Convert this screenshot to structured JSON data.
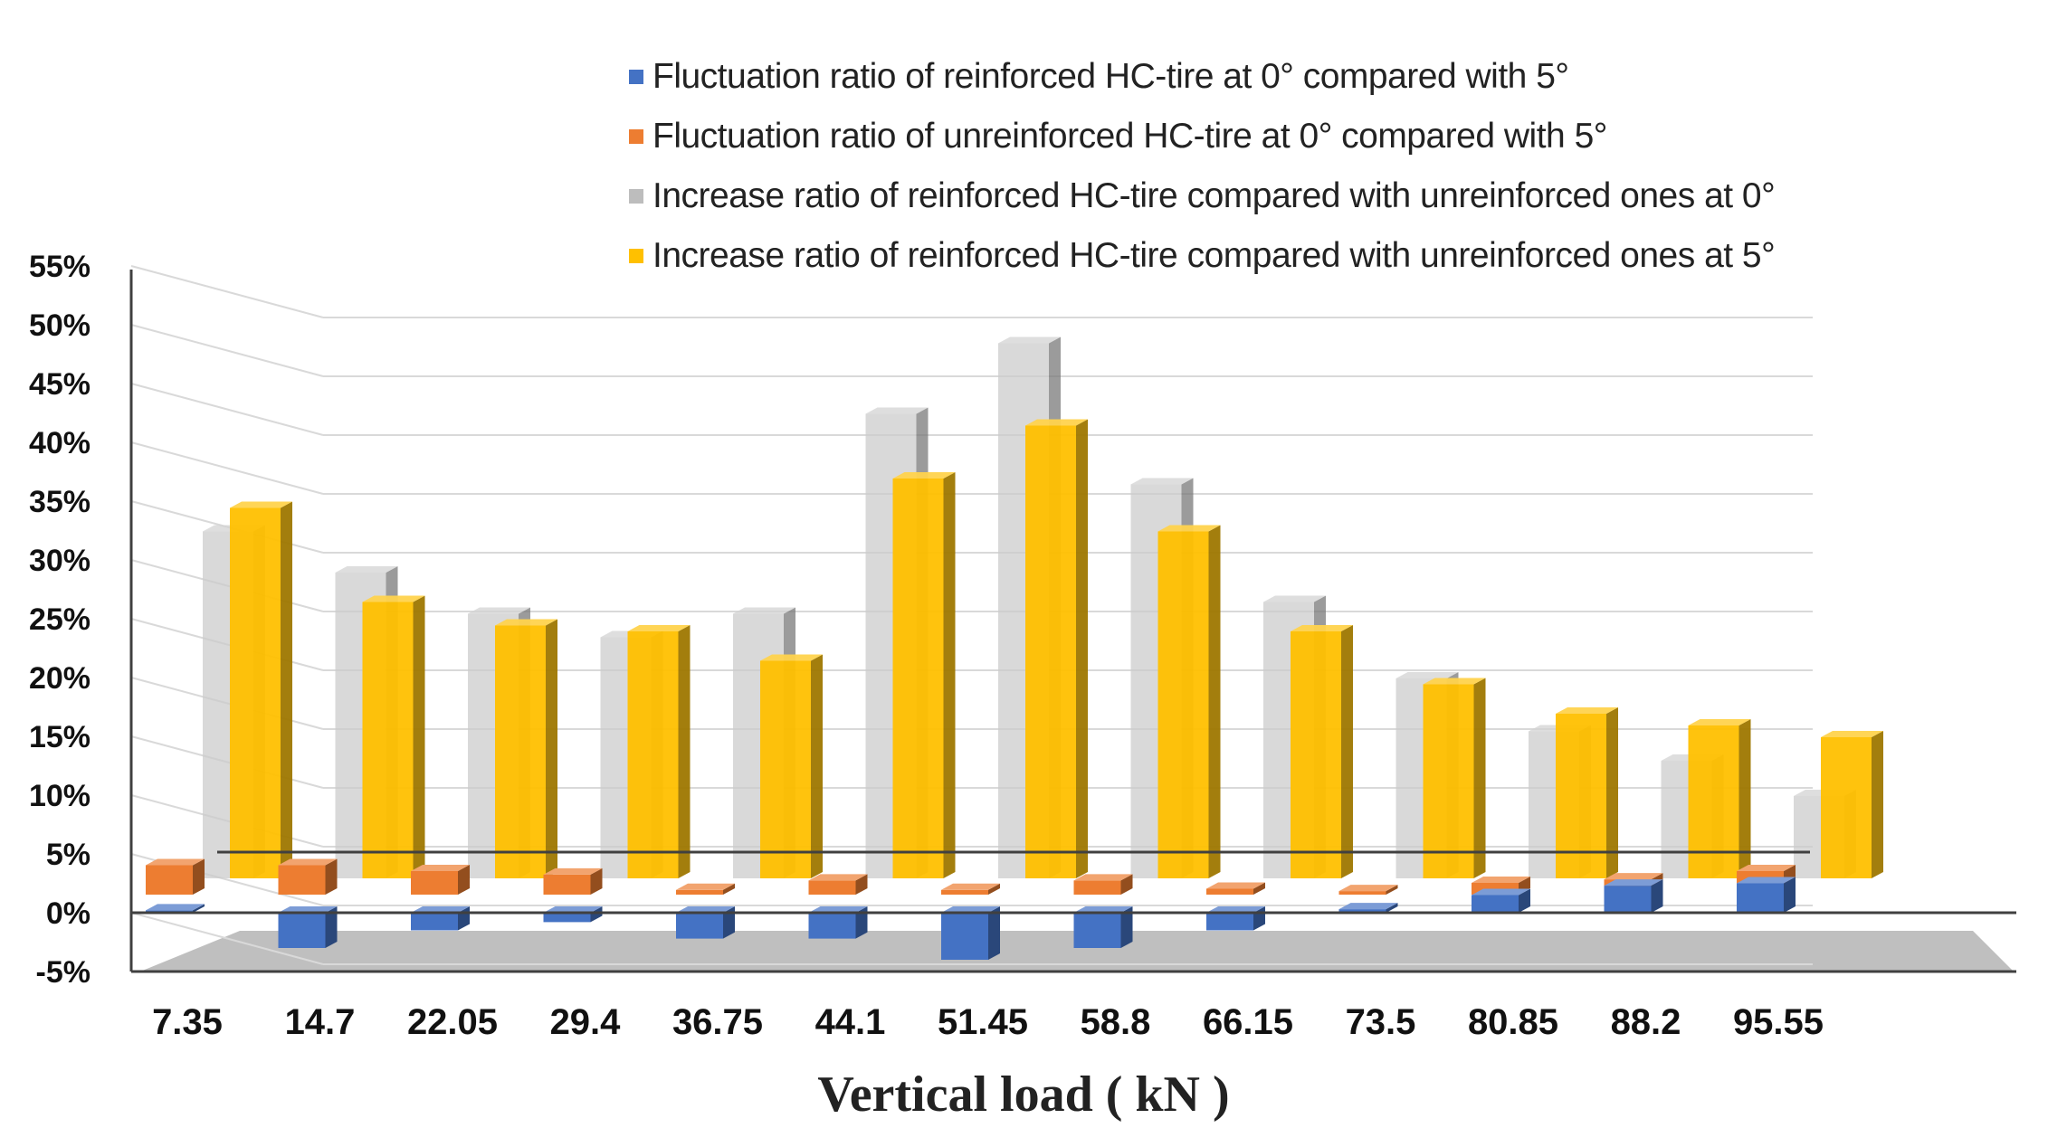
{
  "chart_data": {
    "type": "bar",
    "title": "",
    "xlabel": "Vertical load ( kN )",
    "ylabel": "",
    "ylim": [
      -5,
      55
    ],
    "ytick_step": 5,
    "ytick_suffix": "%",
    "categories": [
      "7.35",
      "14.7",
      "22.05",
      "29.4",
      "36.75",
      "44.1",
      "51.45",
      "58.8",
      "66.15",
      "73.5",
      "80.85",
      "88.2",
      "95.55"
    ],
    "legend_position": "top-right",
    "series": [
      {
        "name": "Fluctuation ratio of reinforced HC-tire at 0° compared with 5°",
        "color": "#4472C4",
        "values": [
          0.2,
          -3.0,
          -1.5,
          -0.8,
          -2.2,
          -2.2,
          -4.0,
          -3.0,
          -1.5,
          0.3,
          1.5,
          2.3,
          2.5
        ]
      },
      {
        "name": "Fluctuation ratio of unreinforced HC-tire at 0° compared with 5°",
        "color": "#ED7D31",
        "values": [
          2.5,
          2.5,
          2.0,
          1.7,
          0.4,
          1.2,
          0.4,
          1.2,
          0.5,
          0.3,
          1.0,
          1.3,
          2.0
        ]
      },
      {
        "name": "Increase ratio of reinforced HC-tire compared with unreinforced ones at 0°",
        "color": "#BDBDBD",
        "values": [
          32.0,
          28.5,
          25.0,
          23.0,
          25.0,
          42.0,
          48.0,
          36.0,
          26.0,
          19.5,
          15.0,
          12.5,
          9.5
        ]
      },
      {
        "name": "Increase ratio of reinforced HC-tire compared with unreinforced ones at 5°",
        "color": "#FFC000",
        "values": [
          34.0,
          26.0,
          24.0,
          23.5,
          21.0,
          36.5,
          41.0,
          32.0,
          23.5,
          19.0,
          16.5,
          15.5,
          14.5
        ]
      }
    ]
  }
}
